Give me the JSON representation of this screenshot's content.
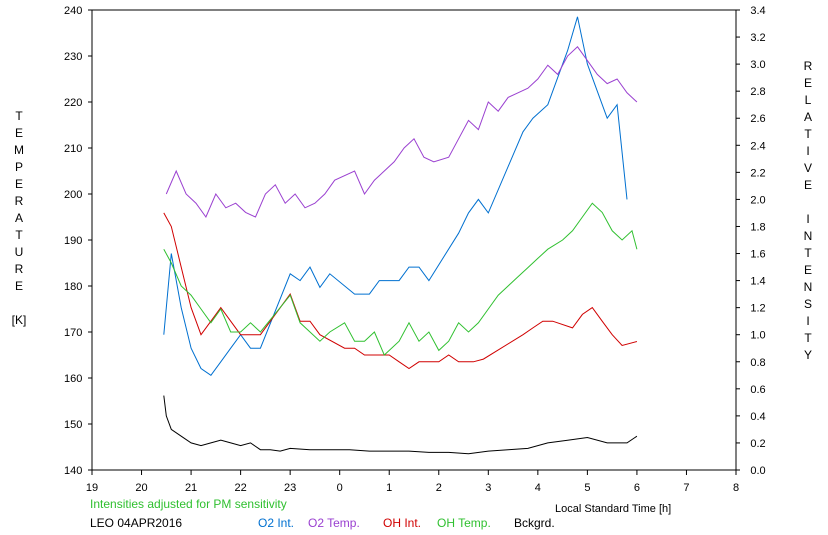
{
  "chart_data": {
    "type": "line",
    "left_axis": {
      "label": "TEMPERATURE",
      "unit": "[K]",
      "ylim": [
        140,
        240
      ],
      "ticks": [
        "140",
        "150",
        "160",
        "170",
        "180",
        "190",
        "200",
        "210",
        "220",
        "230",
        "240"
      ]
    },
    "right_axis": {
      "label": "RELATIVE INTENSITY",
      "ylim": [
        0.0,
        3.4
      ],
      "ticks": [
        "0.0",
        "0.2",
        "0.4",
        "0.6",
        "0.8",
        "1.0",
        "1.2",
        "1.4",
        "1.6",
        "1.8",
        "2.0",
        "2.2",
        "2.4",
        "2.6",
        "2.8",
        "3.0",
        "3.2",
        "3.4"
      ]
    },
    "x_axis": {
      "label": "Local Standard Time [h]",
      "ticks": [
        "19",
        "20",
        "21",
        "22",
        "23",
        "0",
        "1",
        "2",
        "3",
        "4",
        "5",
        "6",
        "7",
        "8"
      ]
    },
    "note": "Intensities adjusted for PM sensitivity",
    "station_date": "LEO 04APR2016",
    "colors": {
      "o2_int": "#0070D0",
      "o2_temp": "#9A40D0",
      "oh_int": "#D00000",
      "oh_temp": "#30C030",
      "bckgrd": "#000000",
      "note": "#30C030"
    },
    "series": [
      {
        "name": "O2 Int.",
        "axis": "right",
        "x": [
          20.45,
          20.6,
          20.8,
          21.0,
          21.2,
          21.4,
          21.6,
          21.8,
          22.0,
          22.2,
          22.4,
          23.0,
          23.2,
          23.4,
          23.6,
          23.8,
          24.3,
          24.6,
          24.8,
          25.2,
          25.4,
          25.6,
          25.8,
          26.4,
          26.6,
          26.8,
          27.0,
          27.7,
          27.9,
          28.2,
          28.4,
          28.6,
          28.8,
          29.0,
          29.2,
          29.4,
          29.6,
          29.8
        ],
        "y": [
          1.0,
          1.6,
          1.2,
          0.9,
          0.75,
          0.7,
          0.8,
          0.9,
          1.0,
          0.9,
          0.9,
          1.45,
          1.4,
          1.5,
          1.35,
          1.45,
          1.3,
          1.3,
          1.4,
          1.4,
          1.5,
          1.5,
          1.4,
          1.75,
          1.9,
          2.0,
          1.9,
          2.5,
          2.6,
          2.7,
          2.9,
          3.1,
          3.35,
          3.0,
          2.8,
          2.6,
          2.7,
          2.0
        ]
      },
      {
        "name": "O2 Temp.",
        "axis": "left",
        "x": [
          20.5,
          20.7,
          20.9,
          21.1,
          21.3,
          21.5,
          21.7,
          21.9,
          22.1,
          22.3,
          22.5,
          22.7,
          22.9,
          23.1,
          23.3,
          23.5,
          23.7,
          23.9,
          24.3,
          24.5,
          24.7,
          24.9,
          25.1,
          25.3,
          25.5,
          25.7,
          25.9,
          26.2,
          26.4,
          26.6,
          26.8,
          27.0,
          27.2,
          27.4,
          27.6,
          27.8,
          28.0,
          28.2,
          28.4,
          28.6,
          28.8,
          29.0,
          29.2,
          29.4,
          29.6,
          29.8,
          30.0
        ],
        "y": [
          200,
          205,
          200,
          198,
          195,
          200,
          197,
          198,
          196,
          195,
          200,
          202,
          198,
          200,
          197,
          198,
          200,
          203,
          205,
          200,
          203,
          205,
          207,
          210,
          212,
          208,
          207,
          208,
          212,
          216,
          214,
          220,
          218,
          221,
          222,
          223,
          225,
          228,
          226,
          230,
          232,
          229,
          226,
          224,
          225,
          222,
          220
        ]
      },
      {
        "name": "OH Int.",
        "axis": "right",
        "x": [
          20.45,
          20.6,
          20.8,
          21.0,
          21.2,
          21.4,
          21.6,
          21.8,
          22.0,
          22.2,
          22.4,
          23.0,
          23.2,
          23.4,
          23.6,
          24.1,
          24.3,
          24.5,
          25.0,
          25.2,
          25.4,
          25.6,
          25.8,
          26.0,
          26.2,
          26.4,
          26.7,
          26.9,
          27.7,
          27.9,
          28.1,
          28.3,
          28.7,
          28.9,
          29.1,
          29.3,
          29.5,
          29.7,
          30.0
        ],
        "y": [
          1.9,
          1.8,
          1.5,
          1.2,
          1.0,
          1.1,
          1.2,
          1.1,
          1.0,
          1.0,
          1.0,
          1.3,
          1.1,
          1.1,
          1.0,
          0.9,
          0.9,
          0.85,
          0.85,
          0.8,
          0.75,
          0.8,
          0.8,
          0.8,
          0.85,
          0.8,
          0.8,
          0.82,
          1.0,
          1.05,
          1.1,
          1.1,
          1.05,
          1.15,
          1.2,
          1.1,
          1.0,
          0.92,
          0.95
        ]
      },
      {
        "name": "OH Temp.",
        "axis": "left",
        "x": [
          20.45,
          20.6,
          20.8,
          21.0,
          21.2,
          21.4,
          21.6,
          21.8,
          22.0,
          22.2,
          22.4,
          23.0,
          23.2,
          23.4,
          23.6,
          23.8,
          24.1,
          24.3,
          24.5,
          24.7,
          24.9,
          25.2,
          25.4,
          25.6,
          25.8,
          26.0,
          26.2,
          26.4,
          26.6,
          26.8,
          27.0,
          27.2,
          27.4,
          27.6,
          27.8,
          28.0,
          28.2,
          28.5,
          28.7,
          28.9,
          29.1,
          29.3,
          29.5,
          29.7,
          29.9,
          30.0
        ],
        "y": [
          188,
          185,
          180,
          178,
          175,
          172,
          175,
          170,
          170,
          172,
          170,
          178,
          172,
          170,
          168,
          170,
          172,
          168,
          168,
          170,
          165,
          168,
          172,
          168,
          170,
          166,
          168,
          172,
          170,
          172,
          175,
          178,
          180,
          182,
          184,
          186,
          188,
          190,
          192,
          195,
          198,
          196,
          192,
          190,
          192,
          188
        ]
      },
      {
        "name": "Bckgrd.",
        "axis": "right",
        "x": [
          20.45,
          20.5,
          20.6,
          20.8,
          21.0,
          21.2,
          21.4,
          21.6,
          21.8,
          22.0,
          22.2,
          22.4,
          22.6,
          22.8,
          23.0,
          23.4,
          23.8,
          24.2,
          24.6,
          25.0,
          25.4,
          25.8,
          26.2,
          26.6,
          27.0,
          27.4,
          27.8,
          28.2,
          28.6,
          29.0,
          29.4,
          29.8,
          30.0
        ],
        "y": [
          0.55,
          0.4,
          0.3,
          0.25,
          0.2,
          0.18,
          0.2,
          0.22,
          0.2,
          0.18,
          0.2,
          0.15,
          0.15,
          0.14,
          0.16,
          0.15,
          0.15,
          0.15,
          0.14,
          0.14,
          0.14,
          0.13,
          0.13,
          0.12,
          0.14,
          0.15,
          0.16,
          0.2,
          0.22,
          0.24,
          0.2,
          0.2,
          0.25
        ]
      }
    ]
  }
}
